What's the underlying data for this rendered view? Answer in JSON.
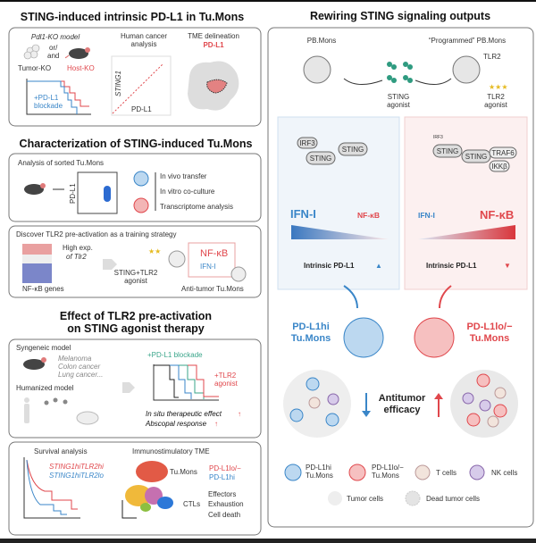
{
  "left": {
    "section1": {
      "title": "STING-induced intrinsic PD-L1 in Tu.Mons",
      "ko_model": "Pdl1-KO model",
      "or_and_1": "or/",
      "or_and_2": "and",
      "tumor_ko": "Tumor-KO",
      "host_ko": "Host-KO",
      "blockade_1": "+PD-L1",
      "blockade_2": "blockade",
      "human_1": "Human cancer",
      "human_2": "analysis",
      "y_axis": "STING1",
      "x_axis": "PD-L1",
      "tme": "TME delineation",
      "tme_marker": "PD-L1"
    },
    "section2": {
      "title": "Characterization of STING-induced Tu.Mons",
      "sorted": "Analysis of sorted Tu.Mons",
      "facs_axis": "PD-L1",
      "uses": [
        "In vivo transfer",
        "In vitro co-culture",
        "Transcriptome analysis"
      ],
      "discover": "Discover TLR2 pre-activation as a training strategy",
      "high_exp_1": "High exp.",
      "high_exp_2": "of Tlr2",
      "genes": "NF-κB genes",
      "agonist_1": "STING+TLR2",
      "agonist_2": "agonist",
      "nfkb": "NF-κB",
      "ifn": "IFN-I",
      "anti_tumor": "Anti-tumor Tu.Mons"
    },
    "section3": {
      "title_1": "Effect of TLR2 pre-activation",
      "title_2": "on STING agonist therapy",
      "syngeneic": "Syngeneic model",
      "cancers": [
        "Melanoma",
        "Colon cancer",
        "Lung cancer..."
      ],
      "humanized": "Humanized model",
      "pdl1_blockade": "+PD-L1 blockade",
      "tlr2_1": "+TLR2",
      "tlr2_2": "agonist",
      "effect": "In situ therapeutic effect",
      "abscopal": "Abscopal response",
      "survival": "Survival analysis",
      "legend_hi": "STING1hiTLR2hi",
      "legend_lo": "STING1hiTLR2lo",
      "tme": "Immunostimulatory TME",
      "tumons": "Tu.Mons",
      "pdl1_lo": "PD-L1lo/−",
      "pdl1_hi": "PD-L1hi",
      "ctls": "CTLs",
      "ctl_items": [
        "Effectors",
        "Exhaustion",
        "Cell death"
      ]
    }
  },
  "right": {
    "title": "Rewiring STING signaling outputs",
    "pbmons": "PB.Mons",
    "programmed": "“Programmed” PB.Mons",
    "tlr2": "TLR2",
    "sting_agonist_1": "STING",
    "sting_agonist_2": "agonist",
    "tlr2_agonist_1": "TLR2",
    "tlr2_agonist_2": "agonist",
    "blue_panel": {
      "irf3": "IRF3",
      "sting": "STING",
      "ifn": "IFN-I",
      "nfkb": "NF-κB",
      "pdl1": "Intrinsic PD-L1"
    },
    "red_panel": {
      "irf3": "IRF3",
      "sting": "STING",
      "traf6": "TRAF6",
      "ikkb": "IKKβ",
      "ifn": "IFN-I",
      "nfkb": "NF-κB",
      "pdl1": "Intrinsic PD-L1"
    },
    "hi_label_1": "PD-L1hi",
    "hi_label_2": "Tu.Mons",
    "lo_label_1": "PD-L1lo/−",
    "lo_label_2": "Tu.Mons",
    "efficacy_1": "Antitumor",
    "efficacy_2": "efficacy",
    "legend": {
      "hi_1": "PD-L1hi",
      "hi_2": "Tu.Mons",
      "lo_1": "PD-L1lo/−",
      "lo_2": "Tu.Mons",
      "t": "T cells",
      "nk": "NK cells",
      "tumor": "Tumor cells",
      "dead": "Dead tumor cells"
    }
  },
  "colors": {
    "blue": "#3a86c8",
    "red": "#e0474c",
    "teal": "#3aa58a",
    "gray": "#d9d9d9"
  }
}
